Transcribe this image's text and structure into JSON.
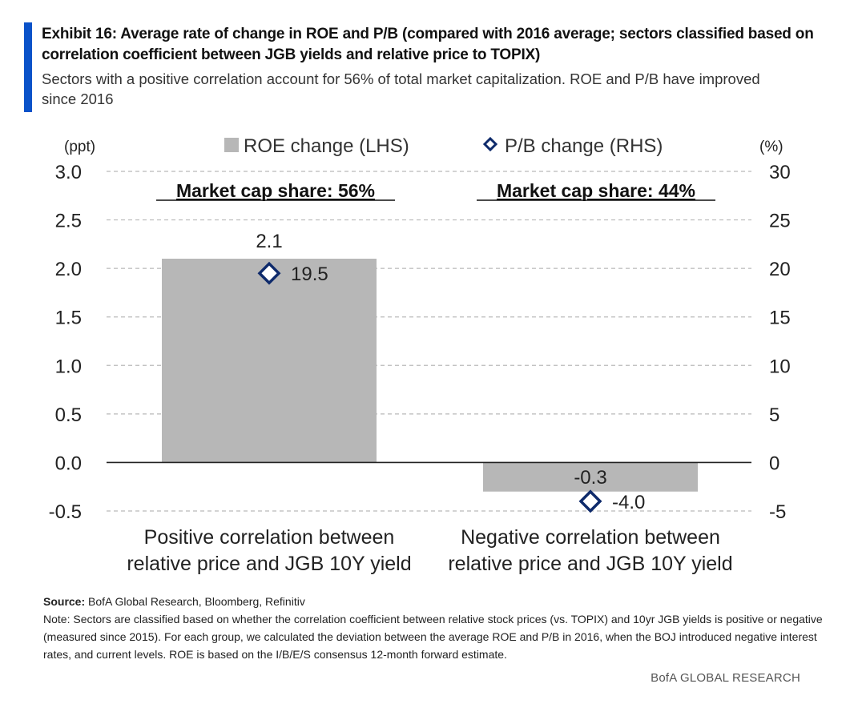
{
  "header": {
    "title": "Exhibit 16: Average rate of change in ROE and P/B (compared with 2016 average; sectors classified based on correlation coefficient between JGB yields and relative price to TOPIX)",
    "subtitle": "Sectors with a positive correlation account for 56% of total market capitalization. ROE and P/B have improved since 2016"
  },
  "chart_data": {
    "type": "bar",
    "title": "Exhibit 16: Average rate of change in ROE and P/B",
    "categories": [
      "Positive correlation between relative price and JGB 10Y yield",
      "Negative correlation between relative price and JGB 10Y yield"
    ],
    "category_lines": [
      [
        "Positive correlation between",
        "relative price and JGB 10Y yield"
      ],
      [
        "Negative correlation between",
        "relative price and JGB 10Y yield"
      ]
    ],
    "series": [
      {
        "name": "ROE change (LHS)",
        "kind": "bar",
        "axis": "left",
        "values": [
          2.1,
          -0.3
        ],
        "labels": [
          "2.1",
          "-0.3"
        ]
      },
      {
        "name": "P/B change (RHS)",
        "kind": "marker",
        "axis": "right",
        "values": [
          19.5,
          -4.0
        ],
        "labels": [
          "19.5",
          "-4.0"
        ]
      }
    ],
    "left_axis": {
      "label": "(ppt)",
      "ylim": [
        -0.5,
        3.0
      ],
      "ticks": [
        "3.0",
        "2.5",
        "2.0",
        "1.5",
        "1.0",
        "0.5",
        "0.0",
        "-0.5"
      ],
      "tick_values": [
        3.0,
        2.5,
        2.0,
        1.5,
        1.0,
        0.5,
        0.0,
        -0.5
      ]
    },
    "right_axis": {
      "label": "(%)",
      "ylim": [
        -5,
        30
      ],
      "ticks": [
        "30",
        "25",
        "20",
        "15",
        "10",
        "5",
        "0",
        "-5"
      ],
      "tick_values": [
        30,
        25,
        20,
        15,
        10,
        5,
        0,
        -5
      ]
    },
    "annotations": [
      "Market cap share: 56%",
      "Market cap share: 44%"
    ],
    "grid": true,
    "legend_position": "top",
    "colors": {
      "bar": "#b7b7b7",
      "marker": "#0e2a6b",
      "grid": "#b9b9b9",
      "zero_line": "#222222"
    }
  },
  "footer": {
    "source_label": "Source:",
    "source_text": " BofA Global Research, Bloomberg, Refinitiv",
    "note": "Note: Sectors are classified based on whether the correlation coefficient between relative stock prices (vs. TOPIX) and 10yr JGB yields is positive or negative (measured since 2015). For each group, we calculated the deviation between the average ROE and P/B in 2016, when the BOJ introduced negative interest rates, and current levels. ROE is based on the I/B/E/S consensus 12-month forward estimate.",
    "brand": "BofA GLOBAL RESEARCH"
  },
  "colors": {
    "accent": "#0a52c9"
  }
}
